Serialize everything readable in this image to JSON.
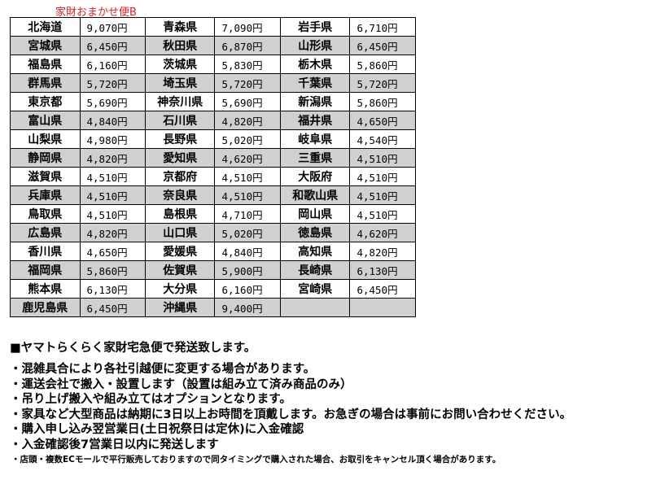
{
  "title": "家財おまかせ便B",
  "rows": [
    [
      [
        "北海道",
        "9,070円"
      ],
      [
        "青森県",
        "7,090円"
      ],
      [
        "岩手県",
        "6,710円"
      ]
    ],
    [
      [
        "宮城県",
        "6,450円"
      ],
      [
        "秋田県",
        "6,870円"
      ],
      [
        "山形県",
        "6,450円"
      ]
    ],
    [
      [
        "福島県",
        "6,160円"
      ],
      [
        "茨城県",
        "5,830円"
      ],
      [
        "栃木県",
        "5,860円"
      ]
    ],
    [
      [
        "群馬県",
        "5,720円"
      ],
      [
        "埼玉県",
        "5,720円"
      ],
      [
        "千葉県",
        "5,720円"
      ]
    ],
    [
      [
        "東京都",
        "5,690円"
      ],
      [
        "神奈川県",
        "5,690円"
      ],
      [
        "新潟県",
        "5,860円"
      ]
    ],
    [
      [
        "富山県",
        "4,840円"
      ],
      [
        "石川県",
        "4,820円"
      ],
      [
        "福井県",
        "4,650円"
      ]
    ],
    [
      [
        "山梨県",
        "4,980円"
      ],
      [
        "長野県",
        "5,020円"
      ],
      [
        "岐阜県",
        "4,540円"
      ]
    ],
    [
      [
        "静岡県",
        "4,820円"
      ],
      [
        "愛知県",
        "4,620円"
      ],
      [
        "三重県",
        "4,510円"
      ]
    ],
    [
      [
        "滋賀県",
        "4,510円"
      ],
      [
        "京都府",
        "4,510円"
      ],
      [
        "大阪府",
        "4,510円"
      ]
    ],
    [
      [
        "兵庫県",
        "4,510円"
      ],
      [
        "奈良県",
        "4,510円"
      ],
      [
        "和歌山県",
        "4,510円"
      ]
    ],
    [
      [
        "鳥取県",
        "4,510円"
      ],
      [
        "島根県",
        "4,710円"
      ],
      [
        "岡山県",
        "4,510円"
      ]
    ],
    [
      [
        "広島県",
        "4,820円"
      ],
      [
        "山口県",
        "5,020円"
      ],
      [
        "徳島県",
        "4,620円"
      ]
    ],
    [
      [
        "香川県",
        "4,650円"
      ],
      [
        "愛媛県",
        "4,840円"
      ],
      [
        "高知県",
        "4,820円"
      ]
    ],
    [
      [
        "福岡県",
        "5,860円"
      ],
      [
        "佐賀県",
        "5,900円"
      ],
      [
        "長崎県",
        "6,130円"
      ]
    ],
    [
      [
        "熊本県",
        "6,130円"
      ],
      [
        "大分県",
        "6,160円"
      ],
      [
        "宮崎県",
        "6,450円"
      ]
    ],
    [
      [
        "鹿児島県",
        "6,450円"
      ],
      [
        "沖縄県",
        "9,400円"
      ],
      [
        "",
        ""
      ]
    ]
  ],
  "heading": "■ヤマトらくらく家財宅急便で発送致します。",
  "bullets": [
    "・混雑具合により各社引越便に変更する場合があります。",
    "・運送会社で搬入・設置します（設置は組み立て済み商品のみ）",
    "・吊り上げ搬入や組み立てはオプションとなります。",
    "・家具など大型商品は納期に3日以上お時間を頂戴します。お急ぎの場合は事前にお問い合わせください。",
    "・購入申し込み翌営業日(土日祝祭日は定休)に入金確認",
    "・入金確認後7営業日以内に発送します"
  ],
  "small_note": "・店頭・複数ECモールで平行販売しておりますので同タイミングで購入された場合、お取引をキャンセル頂く場合があります。"
}
